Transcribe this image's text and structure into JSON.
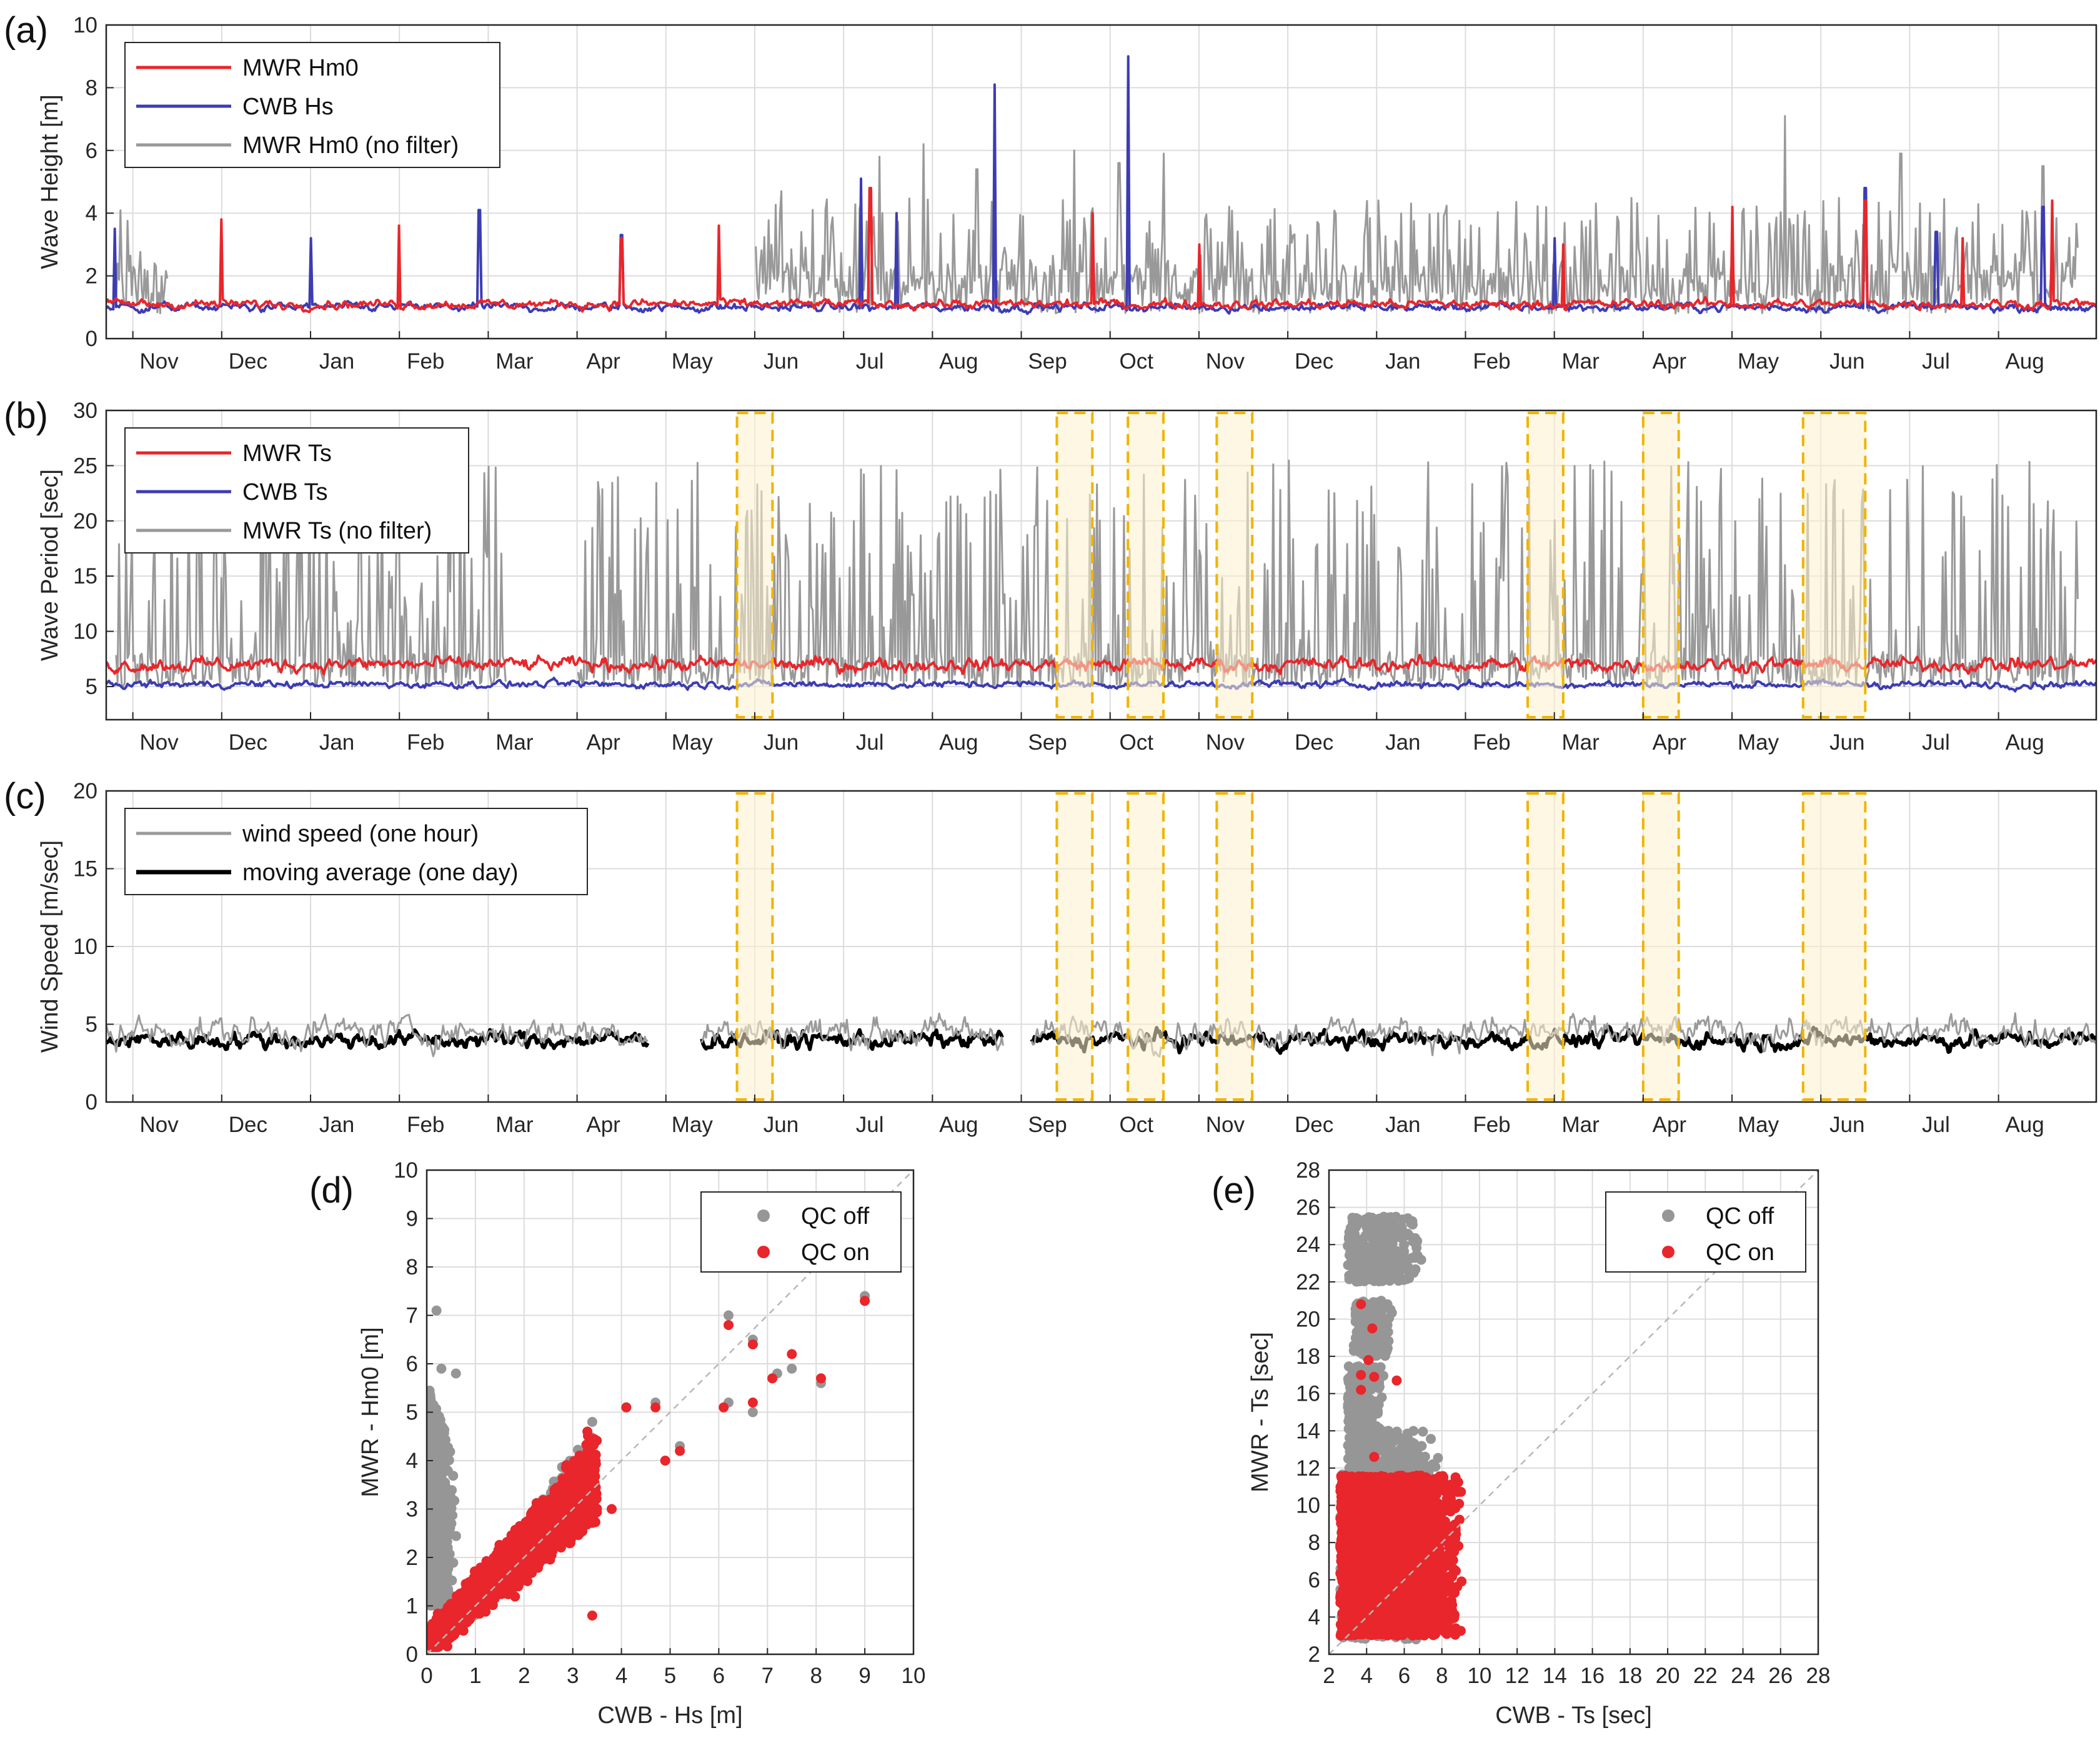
{
  "colors": {
    "mwr": "#e8262b",
    "cwb": "#3c3cb4",
    "nofilter": "#999999",
    "wind_hour": "#9a9a9a",
    "wind_avg": "#000000",
    "highlight_fill": "#fbf0cc",
    "highlight_stroke": "#f0b400",
    "qc_off": "#969696",
    "qc_on": "#e8262b"
  },
  "time_months": [
    "Nov",
    "Dec",
    "Jan",
    "Feb",
    "Mar",
    "Apr",
    "May",
    "Jun",
    "Jul",
    "Aug",
    "Sep",
    "Oct",
    "Nov",
    "Dec",
    "Jan",
    "Feb",
    "Mar",
    "Apr",
    "May",
    "Jun",
    "Jul",
    "Aug"
  ],
  "chart_data": [
    {
      "id": "a",
      "panel_label": "(a)",
      "type": "line",
      "ylabel": "Wave Height [m]",
      "ylim": [
        0,
        10
      ],
      "yticks": [
        0,
        2,
        4,
        6,
        8,
        10
      ],
      "x_tick_labels": [
        "Nov",
        "Dec",
        "Jan",
        "Feb",
        "Mar",
        "Apr",
        "May",
        "Jun",
        "Jul",
        "Aug",
        "Sep",
        "Oct",
        "Nov",
        "Dec",
        "Jan",
        "Feb",
        "Mar",
        "Apr",
        "May",
        "Jun",
        "Jul",
        "Aug"
      ],
      "x_tick_months": [
        0,
        1,
        2,
        3,
        4,
        5,
        6,
        7,
        8,
        9,
        10,
        11,
        12,
        13,
        14,
        15,
        16,
        17,
        18,
        19,
        20,
        21
      ],
      "x_range_months": [
        -0.3,
        22.1
      ],
      "legend": [
        "MWR Hm0",
        "CWB Hs",
        "MWR Hm0 (no filter)"
      ],
      "legend_position": "top-left",
      "grid": true,
      "series": [
        {
          "name": "MWR Hm0",
          "style": "mwr",
          "base": 1.1,
          "noise": 0.55,
          "spikes": [
            [
              1.0,
              3.8
            ],
            [
              3.0,
              3.6
            ],
            [
              5.5,
              3.2
            ],
            [
              6.6,
              3.6
            ],
            [
              8.3,
              4.8
            ],
            [
              10.8,
              4.0
            ],
            [
              12.0,
              3.0
            ],
            [
              16.1,
              3.0
            ],
            [
              18.0,
              4.2
            ],
            [
              19.5,
              4.4
            ],
            [
              20.6,
              3.2
            ],
            [
              21.6,
              4.4
            ]
          ]
        },
        {
          "name": "CWB Hs",
          "style": "cwb",
          "base": 1.0,
          "noise": 0.5,
          "spikes": [
            [
              -0.2,
              3.5
            ],
            [
              2.0,
              3.2
            ],
            [
              3.9,
              4.1
            ],
            [
              5.5,
              3.3
            ],
            [
              8.2,
              5.1
            ],
            [
              8.6,
              4.0
            ],
            [
              9.7,
              8.1
            ],
            [
              11.2,
              9.0
            ],
            [
              16.0,
              3.2
            ],
            [
              19.5,
              4.8
            ],
            [
              20.3,
              3.4
            ],
            [
              21.5,
              4.2
            ]
          ]
        },
        {
          "name": "MWR Hm0 (no filter)",
          "style": "nofilter",
          "active_ranges": [
            [
              -0.2,
              0.4
            ],
            [
              7.0,
              21.9
            ]
          ],
          "bursts": [
            [
              7.3,
              4.7
            ],
            [
              8.4,
              5.8
            ],
            [
              8.9,
              6.2
            ],
            [
              9.5,
              5.4
            ],
            [
              10.6,
              6.0
            ],
            [
              11.1,
              5.6
            ],
            [
              11.6,
              5.9
            ],
            [
              18.6,
              7.1
            ],
            [
              19.9,
              5.9
            ],
            [
              21.5,
              5.5
            ]
          ],
          "ymax_typical": 4.5
        }
      ]
    },
    {
      "id": "b",
      "panel_label": "(b)",
      "type": "line",
      "ylabel": "Wave Period [sec]",
      "ylim": [
        2,
        30
      ],
      "yticks": [
        5,
        10,
        15,
        20,
        25,
        30
      ],
      "x_tick_labels": [
        "Nov",
        "Dec",
        "Jan",
        "Feb",
        "Mar",
        "Apr",
        "May",
        "Jun",
        "Jul",
        "Aug",
        "Sep",
        "Oct",
        "Nov",
        "Dec",
        "Jan",
        "Feb",
        "Mar",
        "Apr",
        "May",
        "Jun",
        "Jul",
        "Aug"
      ],
      "x_tick_months": [
        0,
        1,
        2,
        3,
        4,
        5,
        6,
        7,
        8,
        9,
        10,
        11,
        12,
        13,
        14,
        15,
        16,
        17,
        18,
        19,
        20,
        21
      ],
      "x_range_months": [
        -0.3,
        22.1
      ],
      "legend": [
        "MWR Ts",
        "CWB Ts",
        "MWR Ts (no filter)"
      ],
      "legend_position": "top-left",
      "grid": true,
      "highlights_months": [
        [
          6.8,
          7.2
        ],
        [
          10.4,
          10.8
        ],
        [
          11.2,
          11.6
        ],
        [
          12.2,
          12.6
        ],
        [
          15.7,
          16.1
        ],
        [
          17.0,
          17.4
        ],
        [
          18.8,
          19.5
        ]
      ],
      "series": [
        {
          "name": "MWR Ts",
          "style": "mwr",
          "base": 7.0,
          "noise": 2.3
        },
        {
          "name": "CWB Ts",
          "style": "cwb",
          "base": 5.2,
          "noise": 1.2
        },
        {
          "name": "MWR Ts (no filter)",
          "style": "nofilter",
          "active_ranges": [
            [
              -0.2,
              4.2
            ],
            [
              5.0,
              21.9
            ]
          ],
          "ymax": 25.5
        }
      ]
    },
    {
      "id": "c",
      "panel_label": "(c)",
      "type": "line",
      "ylabel": "Wind Speed [m/sec]",
      "ylim": [
        0,
        20
      ],
      "yticks": [
        0,
        5,
        10,
        15,
        20
      ],
      "x_tick_labels": [
        "Nov",
        "Dec",
        "Jan",
        "Feb",
        "Mar",
        "Apr",
        "May",
        "Jun",
        "Jul",
        "Aug",
        "Sep",
        "Oct",
        "Nov",
        "Dec",
        "Jan",
        "Feb",
        "Mar",
        "Apr",
        "May",
        "Jun",
        "Jul",
        "Aug"
      ],
      "x_tick_months": [
        0,
        1,
        2,
        3,
        4,
        5,
        6,
        7,
        8,
        9,
        10,
        11,
        12,
        13,
        14,
        15,
        16,
        17,
        18,
        19,
        20,
        21
      ],
      "x_range_months": [
        -0.3,
        22.1
      ],
      "legend": [
        "wind speed (one hour)",
        "moving average (one day)"
      ],
      "legend_position": "top-left",
      "grid": true,
      "gaps_months": [
        [
          5.8,
          6.4
        ],
        [
          9.8,
          10.1
        ]
      ],
      "highlights_months": [
        [
          6.8,
          7.2
        ],
        [
          10.4,
          10.8
        ],
        [
          11.2,
          11.6
        ],
        [
          12.2,
          12.6
        ],
        [
          15.7,
          16.1
        ],
        [
          17.0,
          17.4
        ],
        [
          18.8,
          19.5
        ]
      ],
      "series": [
        {
          "name": "wind speed (one hour)",
          "style": "wind_hour",
          "base": 4.5,
          "noise": 3.5
        },
        {
          "name": "moving average (one day)",
          "style": "wind_avg",
          "base": 4.0,
          "noise": 2.0
        }
      ]
    },
    {
      "id": "d",
      "panel_label": "(d)",
      "type": "scatter",
      "xlabel": "CWB - Hs [m]",
      "ylabel": "MWR - Hm0 [m]",
      "xlim": [
        0,
        10
      ],
      "ylim": [
        0,
        10
      ],
      "xticks": [
        0,
        1,
        2,
        3,
        4,
        5,
        6,
        7,
        8,
        9,
        10
      ],
      "yticks": [
        0,
        1,
        2,
        3,
        4,
        5,
        6,
        7,
        8,
        9,
        10
      ],
      "legend": [
        "QC off",
        "QC on"
      ],
      "legend_position": "top-right",
      "grid": true,
      "reference_line": "y = x (dashed)",
      "series": [
        {
          "name": "QC off",
          "style": "qc_off",
          "outliers": [
            [
              0.2,
              7.1
            ],
            [
              6.2,
              7.0
            ],
            [
              6.7,
              6.5
            ],
            [
              6.2,
              5.2
            ],
            [
              6.7,
              5.0
            ],
            [
              7.2,
              5.8
            ],
            [
              7.5,
              5.9
            ],
            [
              8.1,
              5.6
            ],
            [
              9.0,
              7.4
            ],
            [
              0.3,
              5.9
            ],
            [
              0.6,
              5.8
            ],
            [
              4.1,
              5.1
            ],
            [
              4.7,
              5.2
            ],
            [
              3.4,
              4.8
            ],
            [
              5.2,
              4.3
            ]
          ]
        },
        {
          "name": "QC on",
          "style": "qc_on",
          "outliers": [
            [
              6.2,
              6.8
            ],
            [
              6.7,
              6.4
            ],
            [
              6.1,
              5.1
            ],
            [
              6.7,
              5.2
            ],
            [
              7.1,
              5.7
            ],
            [
              7.5,
              6.2
            ],
            [
              8.1,
              5.7
            ],
            [
              9.0,
              7.3
            ],
            [
              4.1,
              5.1
            ],
            [
              4.7,
              5.1
            ],
            [
              3.3,
              4.6
            ],
            [
              5.2,
              4.2
            ],
            [
              4.9,
              4.0
            ],
            [
              3.8,
              3.0
            ],
            [
              3.4,
              0.8
            ]
          ]
        }
      ]
    },
    {
      "id": "e",
      "panel_label": "(e)",
      "type": "scatter",
      "xlabel": "CWB - Ts [sec]",
      "ylabel": "MWR - Ts [sec]",
      "xlim": [
        2,
        28
      ],
      "ylim": [
        2,
        28
      ],
      "xticks": [
        2,
        4,
        6,
        8,
        10,
        12,
        14,
        16,
        18,
        20,
        22,
        24,
        26,
        28
      ],
      "yticks": [
        2,
        4,
        6,
        8,
        10,
        12,
        14,
        16,
        18,
        20,
        22,
        24,
        26,
        28
      ],
      "legend": [
        "QC off",
        "QC on"
      ],
      "legend_position": "top-right",
      "grid": true,
      "reference_line": "y = x (dashed)",
      "series": [
        {
          "name": "QC off",
          "style": "qc_off",
          "clusters": [
            [
              3.0,
              7.0,
              22.0,
              25.5
            ],
            [
              3.3,
              5.5,
              18.0,
              21.0
            ],
            [
              3.0,
              5.0,
              14.0,
              17.5
            ],
            [
              3.0,
              8.0,
              11.0,
              14.0
            ]
          ]
        },
        {
          "name": "QC on",
          "style": "qc_on",
          "outliers": [
            [
              3.7,
              20.8
            ],
            [
              4.3,
              19.5
            ],
            [
              4.1,
              17.8
            ],
            [
              3.7,
              17.0
            ],
            [
              4.4,
              16.9
            ],
            [
              5.6,
              16.7
            ],
            [
              3.7,
              16.2
            ],
            [
              4.4,
              12.6
            ]
          ]
        }
      ]
    }
  ]
}
